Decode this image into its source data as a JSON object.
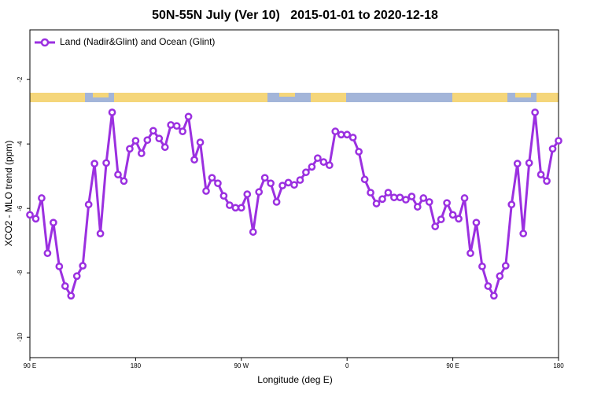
{
  "chart_data": {
    "type": "line",
    "title": "50N-55N July (Ver 10)   2015-01-01 to 2020-12-18",
    "x_label": "Longitude (deg E)",
    "y_label": "XCO2 - MLO trend (ppm)",
    "x": [
      90,
      95,
      100,
      105,
      110,
      115,
      120,
      125,
      130,
      135,
      140,
      145,
      150,
      155,
      160,
      165,
      170,
      175,
      180,
      185,
      190,
      195,
      200,
      205,
      210,
      215,
      220,
      225,
      230,
      235,
      240,
      245,
      250,
      255,
      260,
      265,
      270,
      275,
      280,
      285,
      290,
      295,
      300,
      305,
      310,
      315,
      320,
      325,
      330,
      335,
      340,
      345,
      350,
      355,
      360,
      365,
      370,
      375,
      380,
      385,
      390,
      395,
      400,
      405,
      410,
      415,
      420,
      425,
      430,
      435,
      440,
      445,
      450,
      455,
      460,
      465,
      470,
      475,
      480,
      485,
      490,
      495,
      500,
      505,
      510,
      515,
      520,
      525,
      530,
      535,
      540
    ],
    "series": [
      {
        "name": "Land (Nadir&Glint) and Ocean (Glint)",
        "color": "#9b30e0",
        "values": [
          -6.2,
          -6.32,
          -5.68,
          -7.39,
          -6.44,
          -7.8,
          -8.41,
          -8.71,
          -8.1,
          -7.78,
          -5.88,
          -4.61,
          -6.78,
          -4.59,
          -3.02,
          -4.95,
          -5.15,
          -4.15,
          -3.9,
          -4.29,
          -3.88,
          -3.59,
          -3.83,
          -4.1,
          -3.41,
          -3.44,
          -3.61,
          -3.15,
          -4.49,
          -3.95,
          -5.46,
          -5.05,
          -5.22,
          -5.61,
          -5.9,
          -5.98,
          -5.98,
          -5.56,
          -6.73,
          -5.49,
          -5.05,
          -5.22,
          -5.8,
          -5.29,
          -5.2,
          -5.27,
          -5.12,
          -4.88,
          -4.71,
          -4.44,
          -4.56,
          -4.66,
          -3.61,
          -3.71,
          -3.71,
          -3.8,
          -4.24,
          -5.1,
          -5.51,
          -5.85,
          -5.71,
          -5.51,
          -5.66,
          -5.66,
          -5.73,
          -5.63,
          -5.95,
          -5.68,
          -5.8,
          -6.56,
          -6.34,
          -5.83,
          -6.2,
          -6.32,
          -5.68,
          -7.39,
          -6.44,
          -7.8,
          -8.41,
          -8.71,
          -8.1,
          -7.78,
          -5.88,
          -4.61,
          -6.78,
          -4.59,
          -3.02,
          -4.95,
          -5.15,
          -4.15,
          -3.9
        ]
      }
    ],
    "xlim": [
      90,
      540
    ],
    "xticks": [
      {
        "value": 90,
        "label": "90 E"
      },
      180,
      {
        "value": 270,
        "label": "90 W"
      },
      {
        "value": 360,
        "label": "0"
      },
      {
        "value": 450,
        "label": "90 E"
      },
      {
        "value": 540,
        "label": "180"
      }
    ],
    "ylim": [
      -10.63,
      -0.46
    ],
    "yticks": [
      -10,
      -8,
      -6,
      -4,
      -2
    ],
    "legend": "top-left"
  }
}
